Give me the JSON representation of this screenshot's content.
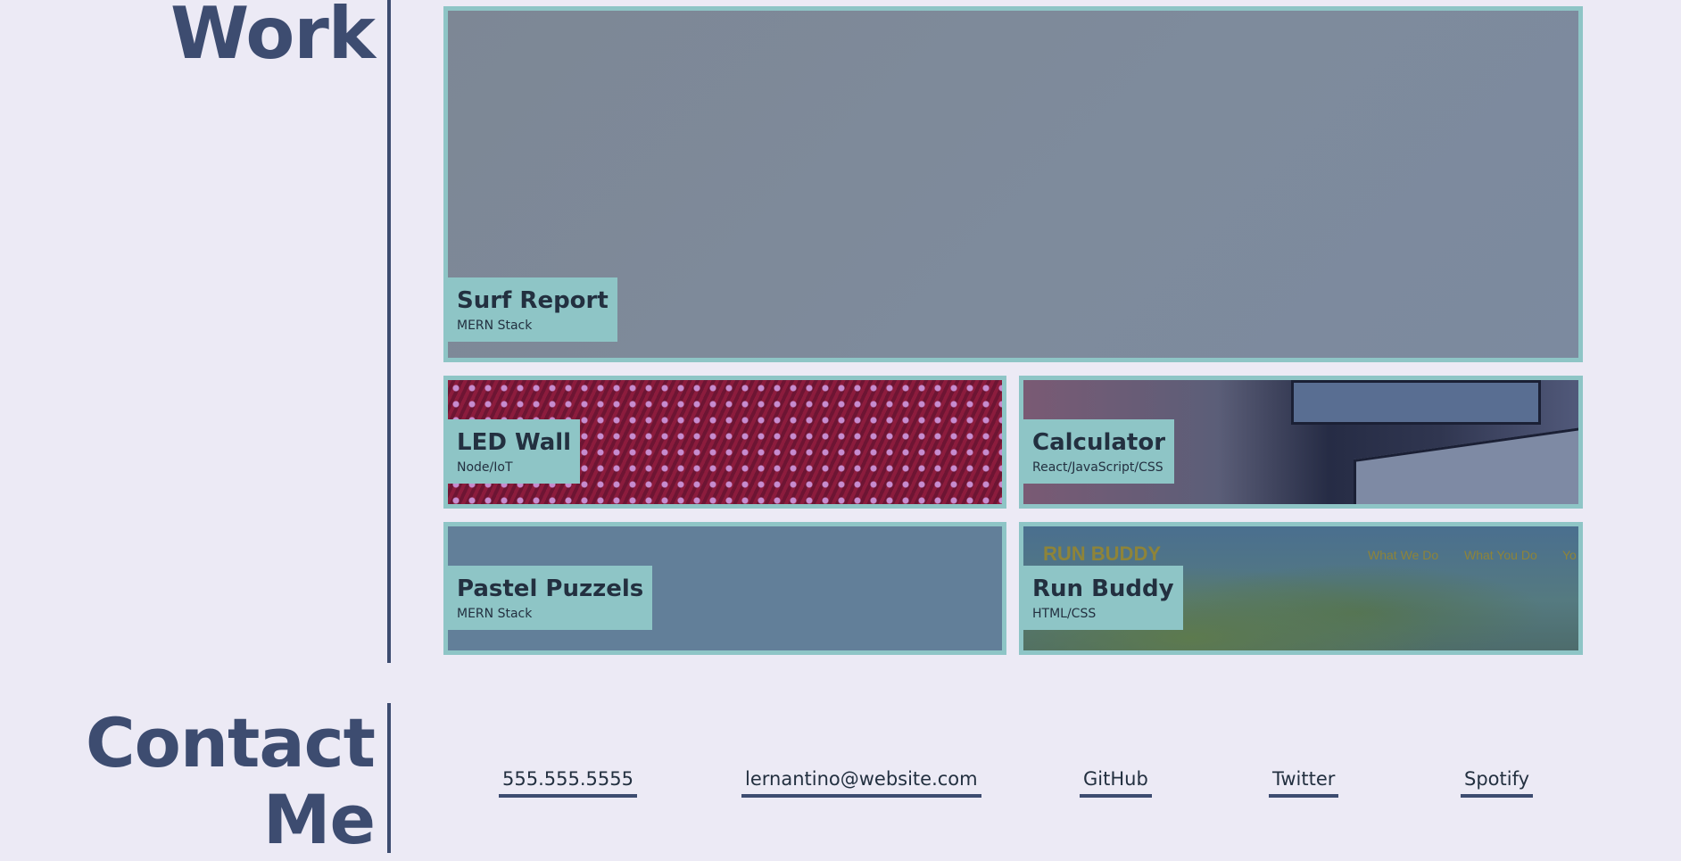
{
  "work": {
    "heading": "Work",
    "projects": [
      {
        "name": "Surf Report",
        "tech": "MERN Stack"
      },
      {
        "name": "LED Wall",
        "tech": "Node/IoT"
      },
      {
        "name": "Calculator",
        "tech": "React/JavaScript/CSS"
      },
      {
        "name": "Pastel Puzzels",
        "tech": "MERN Stack"
      },
      {
        "name": "Run Buddy",
        "tech": "HTML/CSS",
        "preview": {
          "brand": "RUN BUDDY",
          "nav": [
            "What We Do",
            "What You Do",
            "Yo"
          ]
        }
      }
    ]
  },
  "contact": {
    "heading_line1": "Contact",
    "heading_line2": "Me",
    "links": {
      "phone": "555.555.5555",
      "email": "lernantino@website.com",
      "github": "GitHub",
      "twitter": "Twitter",
      "spotify": "Spotify"
    }
  },
  "colors": {
    "background": "#eceaf5",
    "heading": "#3d4c70",
    "accent": "#8ec5c6"
  }
}
